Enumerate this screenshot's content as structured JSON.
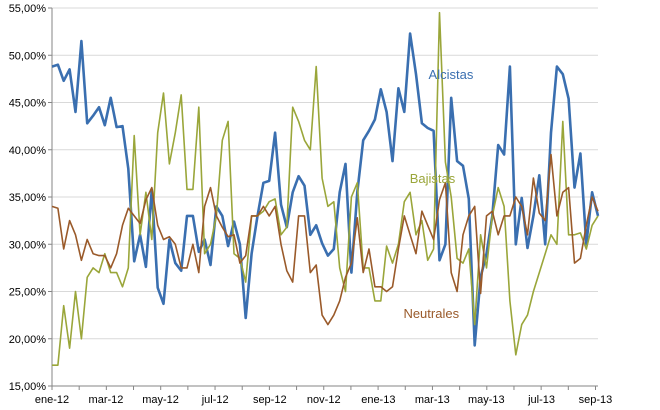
{
  "chart_data": {
    "type": "line",
    "title": "",
    "xlabel": "",
    "ylabel": "",
    "ylim": [
      0.15,
      0.55
    ],
    "ytick_values": [
      0.15,
      0.2,
      0.25,
      0.3,
      0.35,
      0.4,
      0.45,
      0.5,
      0.55
    ],
    "ytick_labels": [
      "15,00%",
      "20,00%",
      "25,00%",
      "30,00%",
      "35,00%",
      "40,00%",
      "45,00%",
      "50,00%",
      "55,00%"
    ],
    "xtick_labels": [
      "ene-12",
      "mar-12",
      "may-12",
      "jul-12",
      "sep-12",
      "nov-12",
      "ene-13",
      "mar-13",
      "may-13",
      "jul-13",
      "sep-13"
    ],
    "xtick_weeks": [
      0,
      8.6,
      17.3,
      26,
      34.7,
      43.3,
      52,
      60.6,
      69.2,
      78,
      86.6
    ],
    "x_range_weeks": [
      0,
      87
    ],
    "grid": "horizontal",
    "legend": "inline labels",
    "series": [
      {
        "name": "Alcistas",
        "color": "#3a6fb0",
        "label_at": [
          60,
          0.475
        ],
        "values": [
          0.488,
          0.49,
          0.473,
          0.485,
          0.44,
          0.515,
          0.428,
          0.436,
          0.445,
          0.426,
          0.455,
          0.424,
          0.425,
          0.38,
          0.282,
          0.31,
          0.276,
          0.358,
          0.254,
          0.237,
          0.305,
          0.28,
          0.272,
          0.33,
          0.33,
          0.292,
          0.305,
          0.278,
          0.34,
          0.33,
          0.298,
          0.324,
          0.3,
          0.222,
          0.29,
          0.33,
          0.365,
          0.367,
          0.418,
          0.342,
          0.318,
          0.355,
          0.372,
          0.362,
          0.31,
          0.32,
          0.301,
          0.288,
          0.295,
          0.355,
          0.385,
          0.27,
          0.355,
          0.41,
          0.42,
          0.432,
          0.464,
          0.44,
          0.388,
          0.465,
          0.44,
          0.523,
          0.48,
          0.428,
          0.423,
          0.42,
          0.283,
          0.3,
          0.455,
          0.388,
          0.383,
          0.348,
          0.193,
          0.265,
          0.29,
          0.33,
          0.405,
          0.395,
          0.488,
          0.3,
          0.349,
          0.296,
          0.33,
          0.373,
          0.3,
          0.418,
          0.488,
          0.48,
          0.454,
          0.36,
          0.396,
          0.3,
          0.355,
          0.33
        ]
      },
      {
        "name": "Bajistas",
        "color": "#9aa63a",
        "label_at": [
          57,
          0.365
        ],
        "values": [
          0.172,
          0.172,
          0.235,
          0.19,
          0.25,
          0.2,
          0.265,
          0.275,
          0.27,
          0.29,
          0.27,
          0.27,
          0.255,
          0.275,
          0.415,
          0.31,
          0.355,
          0.305,
          0.418,
          0.46,
          0.385,
          0.418,
          0.458,
          0.358,
          0.358,
          0.445,
          0.29,
          0.3,
          0.33,
          0.41,
          0.43,
          0.29,
          0.285,
          0.26,
          0.33,
          0.33,
          0.335,
          0.345,
          0.348,
          0.31,
          0.318,
          0.445,
          0.43,
          0.41,
          0.4,
          0.488,
          0.37,
          0.34,
          0.345,
          0.275,
          0.25,
          0.35,
          0.365,
          0.275,
          0.275,
          0.24,
          0.24,
          0.298,
          0.28,
          0.3,
          0.345,
          0.355,
          0.31,
          0.325,
          0.283,
          0.295,
          0.545,
          0.387,
          0.35,
          0.285,
          0.28,
          0.295,
          0.215,
          0.31,
          0.275,
          0.33,
          0.36,
          0.34,
          0.24,
          0.183,
          0.215,
          0.225,
          0.25,
          0.27,
          0.29,
          0.31,
          0.3,
          0.43,
          0.31,
          0.31,
          0.312,
          0.295,
          0.32,
          0.33
        ]
      },
      {
        "name": "Neutrales",
        "color": "#9a5a2a",
        "label_at": [
          56,
          0.222
        ],
        "values": [
          0.34,
          0.338,
          0.295,
          0.325,
          0.31,
          0.283,
          0.305,
          0.29,
          0.288,
          0.288,
          0.275,
          0.29,
          0.32,
          0.338,
          0.33,
          0.322,
          0.347,
          0.36,
          0.32,
          0.305,
          0.308,
          0.3,
          0.275,
          0.275,
          0.3,
          0.27,
          0.34,
          0.36,
          0.33,
          0.318,
          0.308,
          0.31,
          0.28,
          0.288,
          0.33,
          0.33,
          0.34,
          0.33,
          0.34,
          0.3,
          0.272,
          0.26,
          0.33,
          0.33,
          0.27,
          0.278,
          0.225,
          0.215,
          0.225,
          0.24,
          0.265,
          0.28,
          0.328,
          0.27,
          0.295,
          0.255,
          0.255,
          0.25,
          0.255,
          0.295,
          0.33,
          0.31,
          0.29,
          0.335,
          0.32,
          0.305,
          0.347,
          0.365,
          0.27,
          0.25,
          0.31,
          0.33,
          0.34,
          0.248,
          0.33,
          0.335,
          0.31,
          0.33,
          0.33,
          0.35,
          0.34,
          0.31,
          0.37,
          0.333,
          0.325,
          0.395,
          0.33,
          0.355,
          0.36,
          0.28,
          0.285,
          0.32,
          0.35,
          0.335
        ]
      }
    ]
  }
}
